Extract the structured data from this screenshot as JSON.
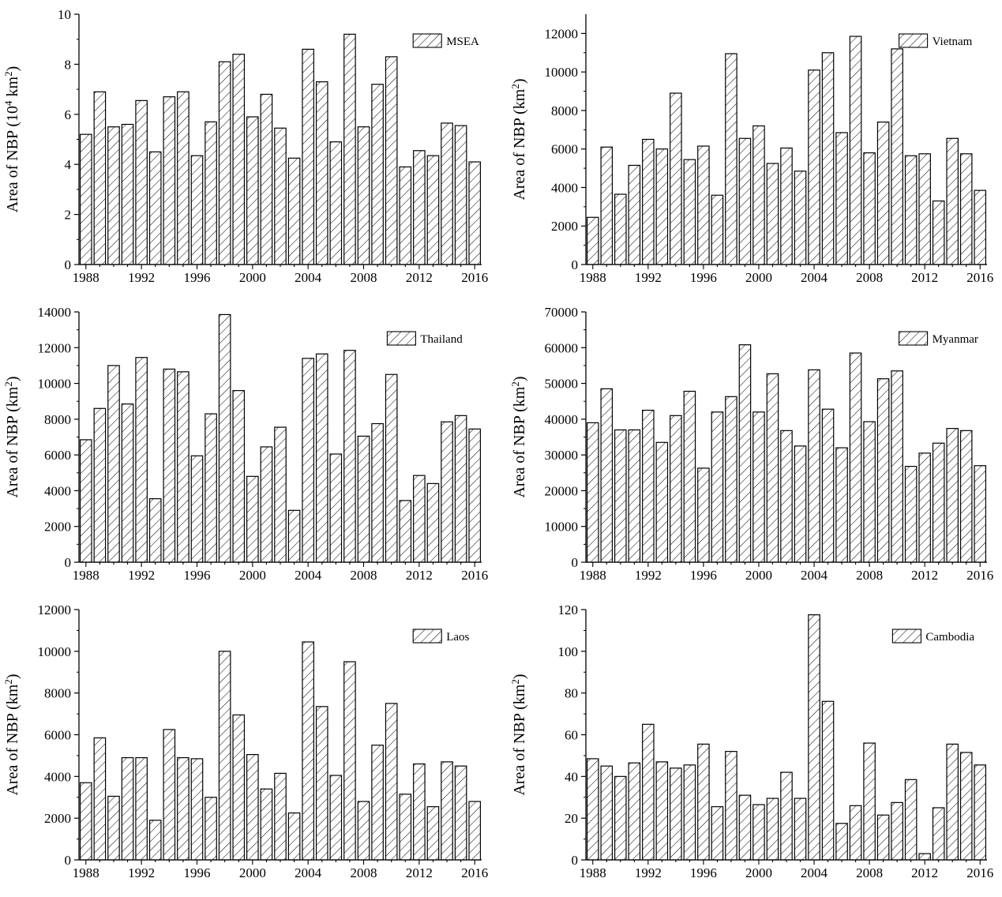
{
  "years": [
    "1988",
    "1989",
    "1990",
    "1991",
    "1992",
    "1993",
    "1994",
    "1995",
    "1996",
    "1997",
    "1998",
    "1999",
    "2000",
    "2001",
    "2002",
    "2003",
    "2004",
    "2005",
    "2006",
    "2007",
    "2008",
    "2009",
    "2010",
    "2011",
    "2012",
    "2013",
    "2014",
    "2015",
    "2016"
  ],
  "chart_data": [
    {
      "type": "bar",
      "id": "msea",
      "title": "",
      "legend": "MSEA",
      "legend_position": "top-right",
      "ylabel": "Area of NBP (10⁴ km²)",
      "ylim": [
        0,
        10
      ],
      "yticks": [
        "0",
        "2",
        "4",
        "6",
        "8",
        "10"
      ],
      "xticks": [
        "1988",
        "1992",
        "1996",
        "2000",
        "2004",
        "2008",
        "2012",
        "2016"
      ],
      "values": [
        5.2,
        6.9,
        5.5,
        5.6,
        6.55,
        4.5,
        6.7,
        6.9,
        4.35,
        5.7,
        8.1,
        8.4,
        5.9,
        6.8,
        5.45,
        4.25,
        8.6,
        7.3,
        4.9,
        9.2,
        5.5,
        7.2,
        8.3,
        3.9,
        4.55,
        4.35,
        5.65,
        5.55,
        4.1
      ],
      "grid": false
    },
    {
      "type": "bar",
      "id": "vietnam",
      "title": "",
      "legend": "Vietnam",
      "legend_position": "top-right",
      "ylabel": "Area of NBP (km²)",
      "ylim": [
        0,
        13000
      ],
      "yticks": [
        "0",
        "2000",
        "4000",
        "6000",
        "8000",
        "10000",
        "12000"
      ],
      "xticks": [
        "1988",
        "1992",
        "1996",
        "2000",
        "2004",
        "2008",
        "2012",
        "2016"
      ],
      "values": [
        2450,
        6100,
        3650,
        5150,
        6500,
        6000,
        8900,
        5450,
        6150,
        3600,
        10950,
        6550,
        7200,
        5250,
        6050,
        4850,
        10100,
        11000,
        6850,
        11850,
        5800,
        7400,
        11200,
        5650,
        5750,
        3300,
        6550,
        5750,
        3850
      ],
      "grid": false
    },
    {
      "type": "bar",
      "id": "thailand",
      "title": "",
      "legend": "Thailand",
      "legend_position": "top-right",
      "ylabel": "Area of NBP (km²)",
      "ylim": [
        0,
        14000
      ],
      "yticks": [
        "0",
        "2000",
        "4000",
        "6000",
        "8000",
        "10000",
        "12000",
        "14000"
      ],
      "xticks": [
        "1988",
        "1992",
        "1996",
        "2000",
        "2004",
        "2008",
        "2012",
        "2016"
      ],
      "values": [
        6850,
        8600,
        11000,
        8850,
        11450,
        3550,
        10800,
        10650,
        5950,
        8300,
        13850,
        9600,
        4800,
        6450,
        7550,
        2900,
        11400,
        11650,
        6050,
        11850,
        7050,
        7750,
        10500,
        3450,
        4850,
        4400,
        7850,
        8200,
        7450
      ],
      "grid": false
    },
    {
      "type": "bar",
      "id": "myanmar",
      "title": "",
      "legend": "Myanmar",
      "legend_position": "top-right",
      "ylabel": "Area of NBP (km²)",
      "ylim": [
        0,
        70000
      ],
      "yticks": [
        "0",
        "10000",
        "20000",
        "30000",
        "40000",
        "50000",
        "60000",
        "70000"
      ],
      "xticks": [
        "1988",
        "1992",
        "1996",
        "2000",
        "2004",
        "2008",
        "2012",
        "2016"
      ],
      "values": [
        39000,
        48500,
        37000,
        37000,
        42500,
        33500,
        41000,
        47800,
        26300,
        42000,
        46300,
        60800,
        42000,
        52700,
        36800,
        32500,
        53800,
        42800,
        32000,
        58500,
        39300,
        51300,
        53500,
        26800,
        30500,
        33300,
        37400,
        36800,
        27000
      ],
      "grid": false
    },
    {
      "type": "bar",
      "id": "laos",
      "title": "",
      "legend": "Laos",
      "legend_position": "top-right",
      "ylabel": "Area of NBP (km²)",
      "ylim": [
        0,
        12000
      ],
      "yticks": [
        "0",
        "2000",
        "4000",
        "6000",
        "8000",
        "10000",
        "12000"
      ],
      "xticks": [
        "1988",
        "1992",
        "1996",
        "2000",
        "2004",
        "2008",
        "2012",
        "2016"
      ],
      "values": [
        3700,
        5850,
        3050,
        4900,
        4900,
        1900,
        6250,
        4900,
        4850,
        3000,
        10000,
        6950,
        5050,
        3400,
        4150,
        2250,
        10450,
        7350,
        4050,
        9500,
        2800,
        5500,
        7500,
        3150,
        4600,
        2550,
        4700,
        4500,
        2800
      ],
      "grid": false
    },
    {
      "type": "bar",
      "id": "cambodia",
      "title": "",
      "legend": "Cambodia",
      "legend_position": "top-right",
      "ylabel": "Area of NBP (km²)",
      "ylim": [
        0,
        120
      ],
      "yticks": [
        "0",
        "20",
        "40",
        "60",
        "80",
        "100",
        "120"
      ],
      "xticks": [
        "1988",
        "1992",
        "1996",
        "2000",
        "2004",
        "2008",
        "2012",
        "2016"
      ],
      "values": [
        48.5,
        45,
        40,
        46.5,
        65,
        47,
        44,
        45.5,
        55.5,
        25.5,
        52,
        31,
        26.5,
        29.5,
        42,
        29.5,
        117.5,
        76,
        17.5,
        26,
        56,
        21.5,
        27.5,
        38.5,
        3,
        25,
        55.5,
        51.5,
        45.5
      ],
      "grid": false
    }
  ]
}
